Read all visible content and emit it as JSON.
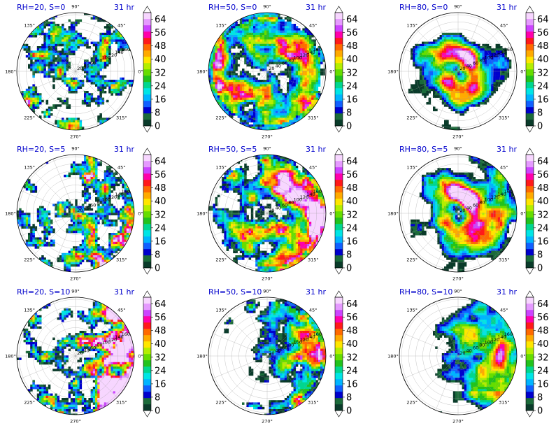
{
  "chart_data": {
    "type": "heatmap",
    "layout": {
      "rows": 3,
      "cols": 3
    },
    "polar": {
      "angle_labels": [
        "90°",
        "45°",
        "0°",
        "315°",
        "270°",
        "225°",
        "180°",
        "135°"
      ],
      "radial_labels": [
        "20",
        "40",
        "60",
        "80",
        "100",
        "120",
        "140",
        "160"
      ]
    },
    "colorbar": {
      "ticks": [
        "0",
        "8",
        "16",
        "24",
        "32",
        "40",
        "48",
        "56",
        "64"
      ],
      "min": 0,
      "max": 68,
      "extend": "both",
      "colors": [
        "#0a3b2a",
        "#1b6b3a",
        "#0000cc",
        "#1060ff",
        "#00b4ff",
        "#00e5e5",
        "#00d68f",
        "#22c21c",
        "#66dd00",
        "#b4ee00",
        "#ffe600",
        "#ffaa00",
        "#ff6a00",
        "#ff1a1a",
        "#ff00aa",
        "#cc44ff",
        "#e59aff",
        "#f7d6ff"
      ]
    },
    "panels": [
      {
        "title": "RH=20, S=0",
        "time": "31 hr",
        "rh": 20,
        "s": 0
      },
      {
        "title": "RH=50, S=0",
        "time": "31 hr",
        "rh": 50,
        "s": 0
      },
      {
        "title": "RH=80, S=0",
        "time": "31 hr",
        "rh": 80,
        "s": 0
      },
      {
        "title": "RH=20, S=5",
        "time": "31 hr",
        "rh": 20,
        "s": 5
      },
      {
        "title": "RH=50, S=5",
        "time": "31 hr",
        "rh": 50,
        "s": 5
      },
      {
        "title": "RH=80, S=5",
        "time": "31 hr",
        "rh": 80,
        "s": 5
      },
      {
        "title": "RH=20, S=10",
        "time": "31 hr",
        "rh": 20,
        "s": 10
      },
      {
        "title": "RH=50, S=10",
        "time": "31 hr",
        "rh": 50,
        "s": 10
      },
      {
        "title": "RH=80, S=10",
        "time": "31 hr",
        "rh": 80,
        "s": 10
      }
    ]
  }
}
